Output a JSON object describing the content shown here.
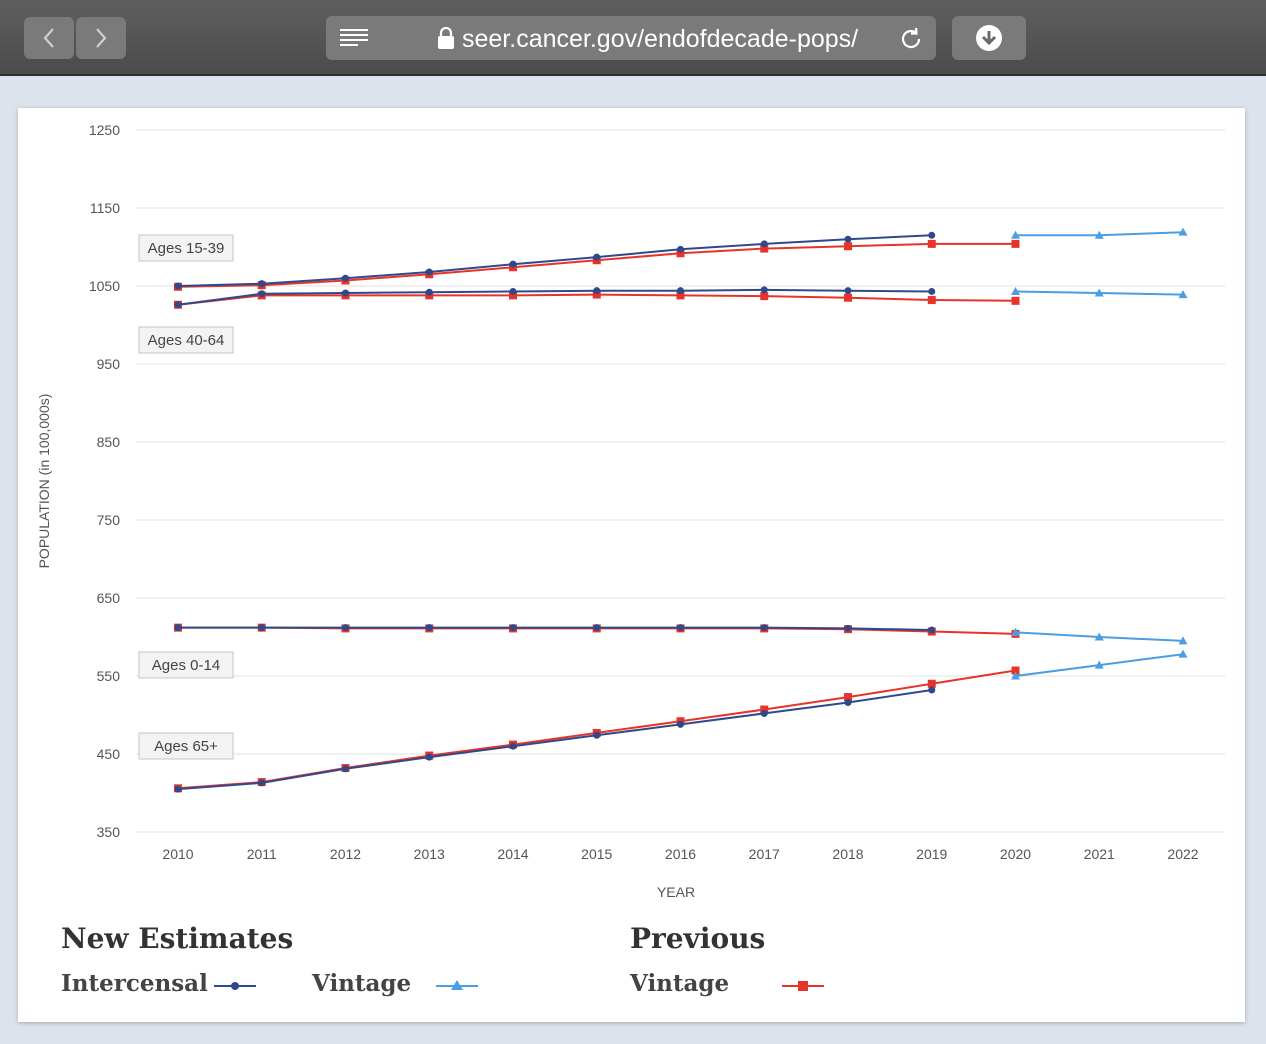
{
  "browser": {
    "url": "seer.cancer.gov/endofdecade-pops/"
  },
  "colors": {
    "intercensal": "#2e4a8c",
    "new_vintage": "#4a9ee3",
    "previous_vintage": "#e8332a"
  },
  "legend": {
    "new_title": "New Estimates",
    "intercensal_label": "Intercensal",
    "new_vintage_label": "Vintage",
    "previous_title": "Previous",
    "previous_vintage_label": "Vintage"
  },
  "chart_data": {
    "type": "line",
    "xlabel": "YEAR",
    "ylabel": "POPULATION (in 100,000s)",
    "ylim": [
      350,
      1250
    ],
    "yticks": [
      350,
      450,
      550,
      650,
      750,
      850,
      950,
      1050,
      1150,
      1250
    ],
    "x": [
      2010,
      2011,
      2012,
      2013,
      2014,
      2015,
      2016,
      2017,
      2018,
      2019,
      2020,
      2021,
      2022
    ],
    "grid": true,
    "annotations": [
      "Ages 15-39",
      "Ages 40-64",
      "Ages 0-14",
      "Ages 65+"
    ],
    "series": [
      {
        "group": "Ages 15-39",
        "kind": "intercensal",
        "x": [
          2010,
          2011,
          2012,
          2013,
          2014,
          2015,
          2016,
          2017,
          2018,
          2019
        ],
        "values": [
          1050,
          1053,
          1060,
          1068,
          1078,
          1087,
          1097,
          1104,
          1110,
          1115
        ]
      },
      {
        "group": "Ages 15-39",
        "kind": "previous_vintage",
        "x": [
          2010,
          2011,
          2012,
          2013,
          2014,
          2015,
          2016,
          2017,
          2018,
          2019,
          2020
        ],
        "values": [
          1049,
          1051,
          1057,
          1065,
          1074,
          1083,
          1092,
          1098,
          1101,
          1104,
          1104
        ]
      },
      {
        "group": "Ages 15-39",
        "kind": "new_vintage",
        "x": [
          2020,
          2021,
          2022
        ],
        "values": [
          1115,
          1115,
          1119
        ]
      },
      {
        "group": "Ages 40-64",
        "kind": "intercensal",
        "x": [
          2010,
          2011,
          2012,
          2013,
          2014,
          2015,
          2016,
          2017,
          2018,
          2019
        ],
        "values": [
          1026,
          1040,
          1041,
          1042,
          1043,
          1044,
          1044,
          1045,
          1044,
          1043
        ]
      },
      {
        "group": "Ages 40-64",
        "kind": "previous_vintage",
        "x": [
          2010,
          2011,
          2012,
          2013,
          2014,
          2015,
          2016,
          2017,
          2018,
          2019,
          2020
        ],
        "values": [
          1026,
          1038,
          1038,
          1038,
          1038,
          1039,
          1038,
          1037,
          1035,
          1032,
          1031
        ]
      },
      {
        "group": "Ages 40-64",
        "kind": "new_vintage",
        "x": [
          2020,
          2021,
          2022
        ],
        "values": [
          1043,
          1041,
          1039
        ]
      },
      {
        "group": "Ages 0-14",
        "kind": "intercensal",
        "x": [
          2010,
          2011,
          2012,
          2013,
          2014,
          2015,
          2016,
          2017,
          2018,
          2019
        ],
        "values": [
          612,
          612,
          612,
          612,
          612,
          612,
          612,
          612,
          611,
          609
        ]
      },
      {
        "group": "Ages 0-14",
        "kind": "previous_vintage",
        "x": [
          2010,
          2011,
          2012,
          2013,
          2014,
          2015,
          2016,
          2017,
          2018,
          2019,
          2020
        ],
        "values": [
          612,
          612,
          611,
          611,
          611,
          611,
          611,
          611,
          610,
          607,
          604
        ]
      },
      {
        "group": "Ages 0-14",
        "kind": "new_vintage",
        "x": [
          2020,
          2021,
          2022
        ],
        "values": [
          606,
          600,
          595
        ]
      },
      {
        "group": "Ages 65+",
        "kind": "intercensal",
        "x": [
          2010,
          2011,
          2012,
          2013,
          2014,
          2015,
          2016,
          2017,
          2018,
          2019
        ],
        "values": [
          405,
          413,
          431,
          446,
          460,
          474,
          488,
          502,
          516,
          532
        ]
      },
      {
        "group": "Ages 65+",
        "kind": "previous_vintage",
        "x": [
          2010,
          2011,
          2012,
          2013,
          2014,
          2015,
          2016,
          2017,
          2018,
          2019,
          2020
        ],
        "values": [
          406,
          414,
          432,
          448,
          462,
          477,
          492,
          507,
          523,
          540,
          557
        ]
      },
      {
        "group": "Ages 65+",
        "kind": "new_vintage",
        "x": [
          2020,
          2021,
          2022
        ],
        "values": [
          550,
          564,
          578
        ]
      }
    ]
  }
}
